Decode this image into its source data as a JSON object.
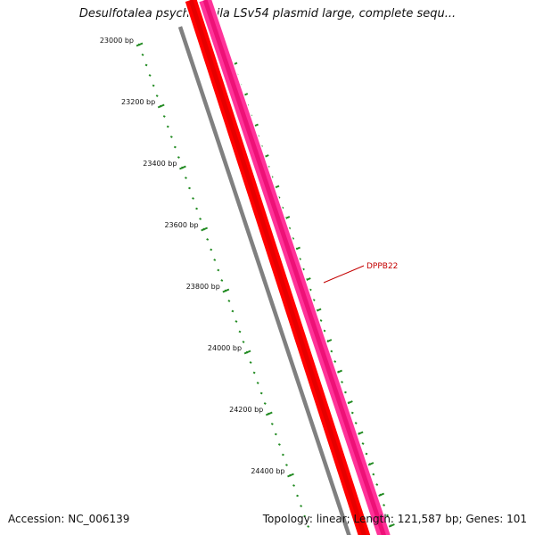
{
  "title": "Desulfotalea psychrophila LSv54 plasmid large, complete sequ...",
  "footer": {
    "accession": "Accession: NC_006139",
    "summary": "Topology: linear; Length: 121,587 bp; Genes: 101"
  },
  "ruler": {
    "ticks": [
      {
        "bp": 23000,
        "label": "23000 bp"
      },
      {
        "bp": 23200,
        "label": "23200 bp"
      },
      {
        "bp": 23400,
        "label": "23400 bp"
      },
      {
        "bp": 23600,
        "label": "23600 bp"
      },
      {
        "bp": 23800,
        "label": "23800 bp"
      },
      {
        "bp": 24000,
        "label": "24000 bp"
      },
      {
        "bp": 24200,
        "label": "24200 bp"
      },
      {
        "bp": 24400,
        "label": "24400 bp"
      }
    ]
  },
  "features": [
    {
      "name": "DPPB22",
      "color": "#c40000"
    }
  ],
  "colors": {
    "backbone": "#808080",
    "gene_forward": "#ff0000",
    "gene_other": "#ff3399",
    "tick": "#228b22"
  }
}
